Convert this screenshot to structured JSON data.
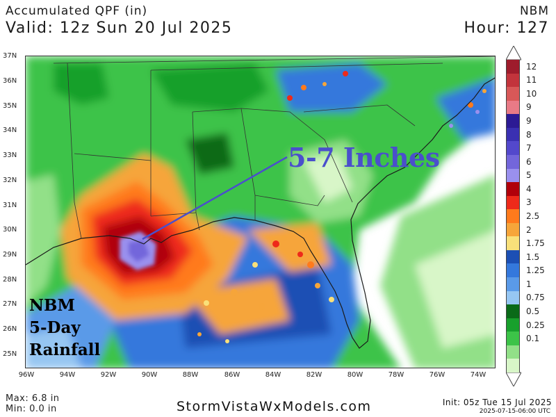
{
  "header": {
    "title": "Accumulated QPF (in)",
    "valid": "Valid: 12z Sun 20 Jul 2025",
    "model": "NBM",
    "hour": "Hour: 127"
  },
  "axes": {
    "lat_labels": [
      "37N",
      "36N",
      "35N",
      "34N",
      "33N",
      "32N",
      "31N",
      "30N",
      "29N",
      "28N",
      "27N",
      "26N",
      "25N"
    ],
    "lon_labels": [
      "96W",
      "94W",
      "92W",
      "90W",
      "88W",
      "86W",
      "84W",
      "82W",
      "80W",
      "78W",
      "76W",
      "74W"
    ]
  },
  "legend": {
    "bins": [
      {
        "label": "12",
        "color": "#9e1c2c"
      },
      {
        "label": "11",
        "color": "#c2343c"
      },
      {
        "label": "10",
        "color": "#d85858"
      },
      {
        "label": "9",
        "color": "#e87a86"
      },
      {
        "label": "9",
        "color": "#2c1a94"
      },
      {
        "label": "8",
        "color": "#3a30b2"
      },
      {
        "label": "7",
        "color": "#5348cc"
      },
      {
        "label": "6",
        "color": "#7366db"
      },
      {
        "label": "5",
        "color": "#9a90ee"
      },
      {
        "label": "4",
        "color": "#b0000a"
      },
      {
        "label": "3",
        "color": "#ee2a1a"
      },
      {
        "label": "2.5",
        "color": "#ff7a1c"
      },
      {
        "label": "2",
        "color": "#f6a53a"
      },
      {
        "label": "1.75",
        "color": "#f9e07a"
      },
      {
        "label": "1.5",
        "color": "#1c4fb4"
      },
      {
        "label": "1.25",
        "color": "#3478dc"
      },
      {
        "label": "1",
        "color": "#5a9ae8"
      },
      {
        "label": "0.75",
        "color": "#96c6f2"
      },
      {
        "label": "0.5",
        "color": "#0a6a18"
      },
      {
        "label": "0.25",
        "color": "#18a02c"
      },
      {
        "label": "0.1",
        "color": "#3cc348"
      },
      {
        "label": "",
        "color": "#92e088"
      },
      {
        "label": "",
        "color": "#d8f6c8"
      }
    ]
  },
  "annotation": {
    "text": "5-7 Inches"
  },
  "badge": {
    "line1": "NBM",
    "line2": "5-Day",
    "line3": "Rainfall"
  },
  "footer": {
    "max": "Max: 6.8 in",
    "min": "Min: 0.0 in",
    "site": "StormVistaWxModels.com",
    "init": "Init: 05z Tue 15 Jul 2025",
    "stamp": "2025-07-15-06:00 UTC"
  }
}
